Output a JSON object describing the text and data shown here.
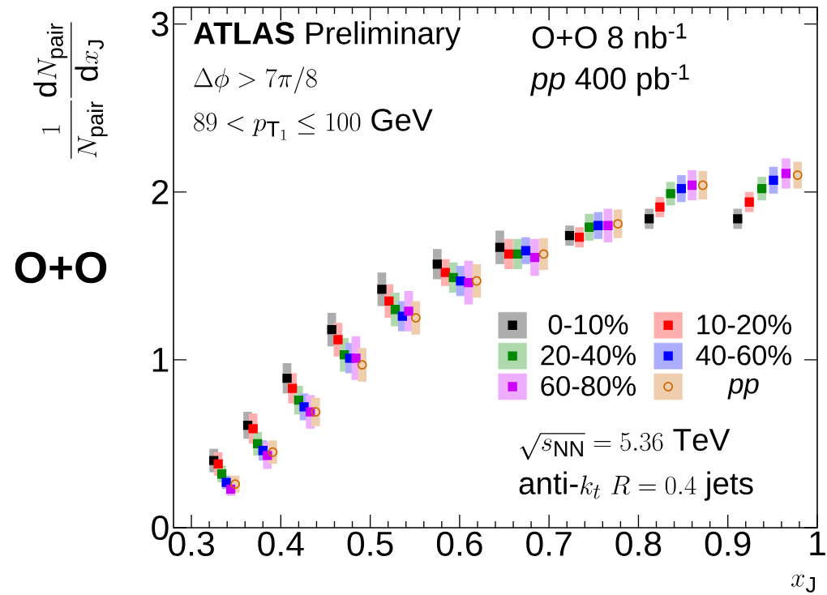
{
  "chart_data": {
    "type": "scatter",
    "title": "**O+O**",
    "xlabel": "x_{\\mathrm{J}}",
    "ylabel": "\\frac{1}{N_{\\mathrm{pair}}}\\frac{\\mathrm{d}N_{\\mathrm{pair}}}{\\mathrm{d}x_{\\mathrm{J}}}",
    "xlim": [
      0.28,
      1.0
    ],
    "xticks": [
      0.3,
      0.4,
      0.5,
      0.6,
      0.7,
      0.8,
      0.9,
      1
    ],
    "ylim": [
      0,
      3.1
    ],
    "yticks": [
      0,
      1,
      2,
      3
    ],
    "legend": "right",
    "annotations": [
      "**ATLAS** Preliminary",
      "\\Delta\\phi > 7\\pi/8",
      "89 < p_{\\mathrm{T}_1} \\leq 100\\ \\mathrm{GeV}",
      "O+O 8 nb$^{-1}$",
      "*pp* 400 pb$^{-1}$",
      "\\sqrt{s_{\\mathrm{NN}}} = 5.36\\ \\mathrm{TeV}",
      "\\mathrm{anti\\text{-}}k_t\\ R = 0.4\\ \\mathrm{jets}"
    ],
    "series": [
      {
        "name": "0-10%",
        "color": "#000000",
        "marker": "square",
        "x": [
          0.325,
          0.363,
          0.407,
          0.457,
          0.513,
          0.575,
          0.645,
          0.723,
          0.812,
          0.911
        ],
        "values": [
          0.4,
          0.61,
          0.89,
          1.18,
          1.42,
          1.57,
          1.67,
          1.74,
          1.84,
          1.84
        ],
        "errors": [
          0.07,
          0.08,
          0.09,
          0.1,
          0.1,
          0.09,
          0.1,
          0.06,
          0.06,
          0.06
        ]
      },
      {
        "name": "10-20%",
        "color": "#ff0000",
        "marker": "square",
        "x": [
          0.33,
          0.369,
          0.413,
          0.464,
          0.521,
          0.584,
          0.655,
          0.734,
          0.824,
          0.924
        ],
        "values": [
          0.38,
          0.59,
          0.83,
          1.12,
          1.35,
          1.52,
          1.63,
          1.73,
          1.91,
          1.94
        ],
        "errors": [
          0.07,
          0.09,
          0.09,
          0.1,
          0.1,
          0.08,
          0.09,
          0.06,
          0.06,
          0.06
        ]
      },
      {
        "name": "20-40%",
        "color": "#008800",
        "marker": "square",
        "x": [
          0.334,
          0.374,
          0.42,
          0.471,
          0.528,
          0.593,
          0.665,
          0.745,
          0.836,
          0.938
        ],
        "values": [
          0.32,
          0.5,
          0.76,
          1.03,
          1.3,
          1.49,
          1.63,
          1.79,
          1.99,
          2.02
        ],
        "errors": [
          0.05,
          0.07,
          0.085,
          0.1,
          0.1,
          0.09,
          0.09,
          0.08,
          0.07,
          0.07
        ]
      },
      {
        "name": "40-60%",
        "color": "#0000ff",
        "marker": "square",
        "x": [
          0.339,
          0.38,
          0.426,
          0.477,
          0.536,
          0.601,
          0.674,
          0.755,
          0.848,
          0.951
        ],
        "values": [
          0.27,
          0.46,
          0.72,
          1.01,
          1.26,
          1.47,
          1.65,
          1.8,
          2.02,
          2.07
        ],
        "errors": [
          0.04,
          0.06,
          0.08,
          0.09,
          0.09,
          0.09,
          0.08,
          0.08,
          0.08,
          0.08
        ]
      },
      {
        "name": "60-80%",
        "color": "#cc00ff",
        "marker": "square",
        "x": [
          0.344,
          0.385,
          0.433,
          0.484,
          0.543,
          0.61,
          0.684,
          0.766,
          0.86,
          0.965
        ],
        "values": [
          0.23,
          0.43,
          0.69,
          1.01,
          1.29,
          1.46,
          1.61,
          1.8,
          2.04,
          2.11
        ],
        "errors": [
          0.04,
          0.08,
          0.1,
          0.13,
          0.12,
          0.13,
          0.11,
          0.1,
          0.09,
          0.09
        ]
      },
      {
        "name": "*pp*",
        "color": "#cc6600",
        "marker": "circle",
        "x": [
          0.349,
          0.391,
          0.439,
          0.491,
          0.551,
          0.619,
          0.694,
          0.777,
          0.872,
          0.978
        ],
        "values": [
          0.26,
          0.45,
          0.69,
          0.97,
          1.25,
          1.47,
          1.63,
          1.81,
          2.04,
          2.1
        ],
        "errors": [
          0.05,
          0.07,
          0.085,
          0.1,
          0.1,
          0.1,
          0.095,
          0.085,
          0.085,
          0.08
        ]
      }
    ]
  }
}
